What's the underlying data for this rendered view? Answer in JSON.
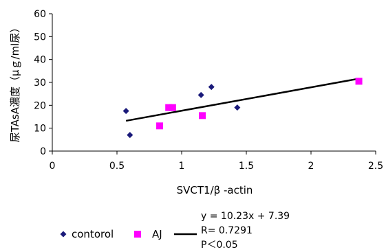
{
  "chart_data": {
    "type": "scatter",
    "xlabel": "SVCT1/β -actin",
    "ylabel": "尿TAsA濃度（μｇ/ml尿）",
    "xlim": [
      0,
      2.5
    ],
    "ylim": [
      0,
      60
    ],
    "x_ticks": [
      "0",
      "0.5",
      "1",
      "1.5",
      "2",
      "2.5"
    ],
    "y_ticks": [
      "0",
      "10",
      "20",
      "30",
      "40",
      "50",
      "60"
    ],
    "x_tick_values": [
      0,
      0.5,
      1,
      1.5,
      2,
      2.5
    ],
    "y_tick_values": [
      0,
      10,
      20,
      30,
      40,
      50,
      60
    ],
    "grid": false,
    "legend_position": "bottom",
    "series": [
      {
        "name": "contorol",
        "marker": "diamond",
        "color": "#1a1a7a",
        "points": [
          {
            "x": 0.57,
            "y": 17.5
          },
          {
            "x": 0.6,
            "y": 7.0
          },
          {
            "x": 1.15,
            "y": 24.5
          },
          {
            "x": 1.23,
            "y": 28.0
          },
          {
            "x": 1.43,
            "y": 19.0
          }
        ]
      },
      {
        "name": "AJ",
        "marker": "square",
        "color": "#ff00ff",
        "points": [
          {
            "x": 0.83,
            "y": 11.0
          },
          {
            "x": 0.9,
            "y": 19.0
          },
          {
            "x": 0.93,
            "y": 19.0
          },
          {
            "x": 1.16,
            "y": 15.5
          },
          {
            "x": 2.37,
            "y": 30.5
          }
        ]
      }
    ],
    "trendline": {
      "color": "#000000",
      "x_range": [
        0.57,
        2.37
      ],
      "slope": 10.23,
      "intercept": 7.39,
      "label_lines": [
        "y = 10.23x + 7.39",
        "R= 0.7291",
        "P＜0.05"
      ]
    }
  }
}
